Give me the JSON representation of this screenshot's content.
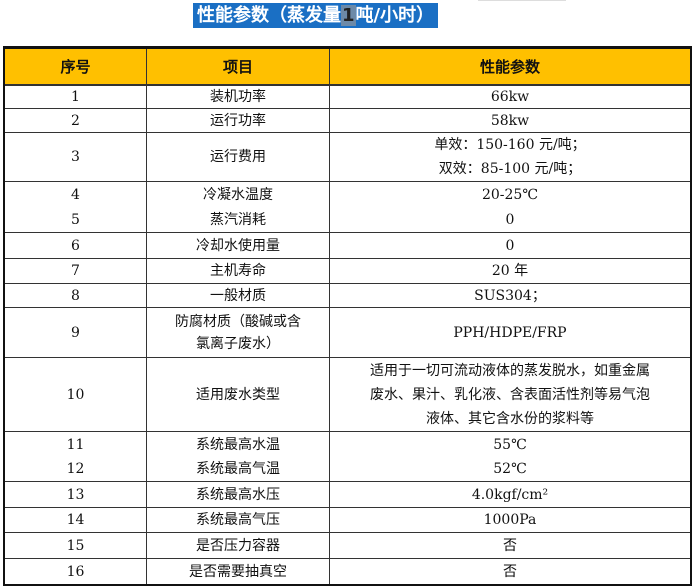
{
  "title": {
    "before": "性能参数（蒸发量",
    "highlight": "1",
    "after": "吨/小时）"
  },
  "headers": [
    "序号",
    "项目",
    "性能参数"
  ],
  "colors": {
    "header_bg": "#ffc000",
    "title_bg": "#1a6fc4"
  },
  "rows": [
    {
      "no": "1",
      "item": [
        "装机功率"
      ],
      "value": [
        "66kw"
      ]
    },
    {
      "no": "2",
      "item": [
        "运行功率"
      ],
      "value": [
        "58kw"
      ]
    },
    {
      "no": "3",
      "item": [
        "运行费用"
      ],
      "value": [
        "单效：150-160 元/吨；",
        "双效：85-100 元/吨；"
      ]
    },
    {
      "no": "4",
      "item": [
        "冷凝水温度"
      ],
      "value": [
        "20-25℃"
      ]
    },
    {
      "no": "5",
      "item": [
        "蒸汽消耗"
      ],
      "value": [
        "0"
      ]
    },
    {
      "no": "6",
      "item": [
        "冷却水使用量"
      ],
      "value": [
        "0"
      ]
    },
    {
      "no": "7",
      "item": [
        "主机寿命"
      ],
      "value": [
        "20 年"
      ]
    },
    {
      "no": "8",
      "item": [
        "一般材质"
      ],
      "value": [
        "SUS304；"
      ]
    },
    {
      "no": "9",
      "item": [
        "防腐材质（酸碱或含",
        "氯离子废水）"
      ],
      "value": [
        "PPH/HDPE/FRP"
      ]
    },
    {
      "no": "10",
      "item": [
        "适用废水类型"
      ],
      "value": [
        "适用于一切可流动液体的蒸发脱水，如重金属",
        "废水、果汁、乳化液、含表面活性剂等易气泡",
        "液体、其它含水份的浆料等"
      ]
    },
    {
      "no": "11",
      "item": [
        "系统最高水温"
      ],
      "value": [
        "55℃"
      ]
    },
    {
      "no": "12",
      "item": [
        "系统最高气温"
      ],
      "value": [
        "52℃"
      ]
    },
    {
      "no": "13",
      "item": [
        "系统最高水压"
      ],
      "value": [
        "4.0kgf/cm²"
      ]
    },
    {
      "no": "14",
      "item": [
        "系统最高气压"
      ],
      "value": [
        "1000Pa"
      ]
    },
    {
      "no": "15",
      "item": [
        "是否压力容器"
      ],
      "value": [
        "否"
      ]
    },
    {
      "no": "16",
      "item": [
        "是否需要抽真空"
      ],
      "value": [
        "否"
      ]
    }
  ]
}
